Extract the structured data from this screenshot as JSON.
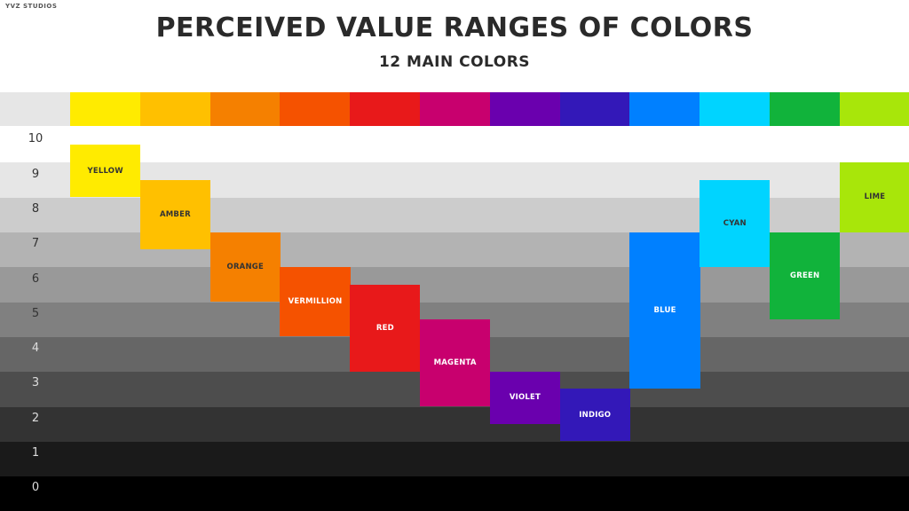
{
  "header": {
    "brand": "YVZ STUDIOS",
    "title": "PERCEIVED VALUE RANGES OF COLORS",
    "subtitle": "12 MAIN COLORS"
  },
  "chart_data": {
    "type": "bar",
    "subtype": "floating-range",
    "title": "PERCEIVED VALUE RANGES OF COLORS",
    "subtitle": "12 MAIN COLORS",
    "xlabel": "",
    "ylabel": "",
    "ylim": [
      0,
      10
    ],
    "y_ticks": [
      10,
      9,
      8,
      7,
      6,
      5,
      4,
      3,
      2,
      1,
      0
    ],
    "band_colors": [
      "#000000",
      "#1a1a1a",
      "#333333",
      "#4d4d4d",
      "#666666",
      "#808080",
      "#999999",
      "#b3b3b3",
      "#cccccc",
      "#e6e6e6",
      "#ffffff"
    ],
    "categories": [
      "YELLOW",
      "AMBER",
      "ORANGE",
      "VERMILLION",
      "RED",
      "MAGENTA",
      "VIOLET",
      "INDIGO",
      "BLUE",
      "CYAN",
      "GREEN",
      "LIME"
    ],
    "ranges": [
      {
        "label": "YELLOW",
        "low": 8.5,
        "high": 10,
        "color": "#FFEB00",
        "text_color": "#333333"
      },
      {
        "label": "AMBER",
        "low": 7,
        "high": 9,
        "color": "#FFC000",
        "text_color": "#333333"
      },
      {
        "label": "ORANGE",
        "low": 5.5,
        "high": 7.5,
        "color": "#F58000",
        "text_color": "#333333"
      },
      {
        "label": "VERMILLION",
        "low": 4.5,
        "high": 6.5,
        "color": "#F55200",
        "text_color": "#ffffff"
      },
      {
        "label": "RED",
        "low": 3.5,
        "high": 6,
        "color": "#E8191A",
        "text_color": "#ffffff"
      },
      {
        "label": "MAGENTA",
        "low": 2.5,
        "high": 5,
        "color": "#C8006E",
        "text_color": "#ffffff"
      },
      {
        "label": "VIOLET",
        "low": 2,
        "high": 3.5,
        "color": "#6A00AE",
        "text_color": "#ffffff"
      },
      {
        "label": "INDIGO",
        "low": 1.5,
        "high": 3,
        "color": "#3318B8",
        "text_color": "#ffffff"
      },
      {
        "label": "BLUE",
        "low": 3,
        "high": 7.5,
        "color": "#0080FF",
        "text_color": "#ffffff"
      },
      {
        "label": "CYAN",
        "low": 6.5,
        "high": 9,
        "color": "#00D4FF",
        "text_color": "#333333"
      },
      {
        "label": "GREEN",
        "low": 5,
        "high": 7.5,
        "color": "#11B33B",
        "text_color": "#ffffff"
      },
      {
        "label": "LIME",
        "low": 7.5,
        "high": 9.5,
        "color": "#A8E60A",
        "text_color": "#333333"
      }
    ]
  }
}
